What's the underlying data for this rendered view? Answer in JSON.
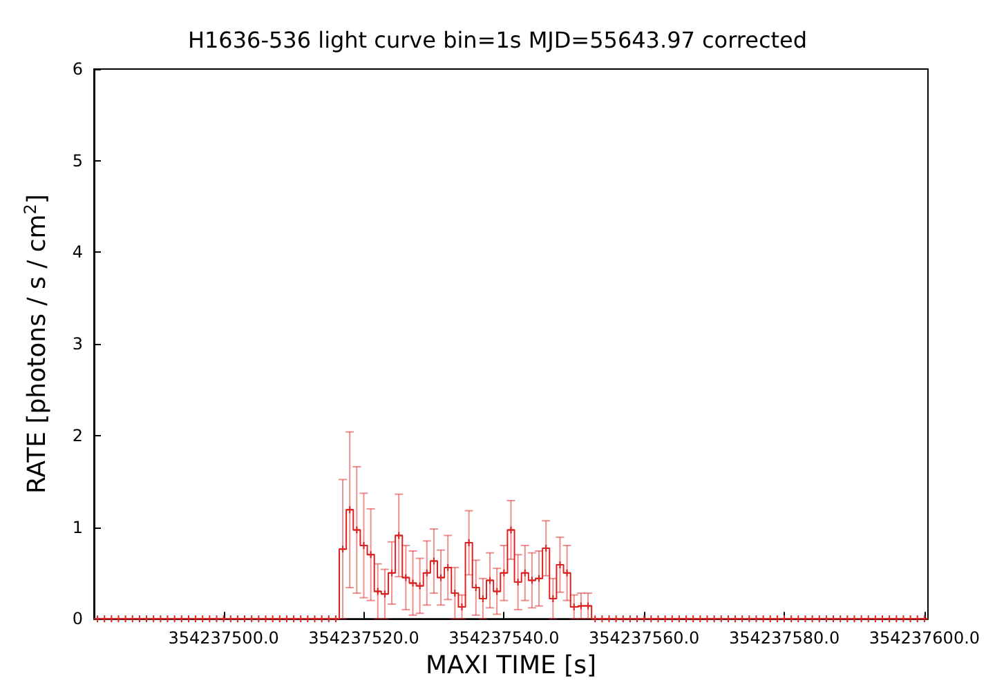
{
  "chart_data": {
    "type": "step",
    "title": "H1636-536 light curve bin=1s MJD=55643.97 corrected",
    "xlabel": "MAXI TIME [s]",
    "ylabel": "RATE [photons / s / cm$^{2}$]",
    "x": [
      354237482,
      354237483,
      354237484,
      354237485,
      354237486,
      354237487,
      354237488,
      354237489,
      354237490,
      354237491,
      354237492,
      354237493,
      354237494,
      354237495,
      354237496,
      354237497,
      354237498,
      354237499,
      354237500,
      354237501,
      354237502,
      354237503,
      354237504,
      354237505,
      354237506,
      354237507,
      354237508,
      354237509,
      354237510,
      354237511,
      354237512,
      354237513,
      354237514,
      354237515,
      354237516,
      354237517,
      354237518,
      354237519,
      354237520,
      354237521,
      354237522,
      354237523,
      354237524,
      354237525,
      354237526,
      354237527,
      354237528,
      354237529,
      354237530,
      354237531,
      354237532,
      354237533,
      354237534,
      354237535,
      354237536,
      354237537,
      354237538,
      354237539,
      354237540,
      354237541,
      354237542,
      354237543,
      354237544,
      354237545,
      354237546,
      354237547,
      354237548,
      354237549,
      354237550,
      354237551,
      354237552,
      354237553,
      354237554,
      354237555,
      354237556,
      354237557,
      354237558,
      354237559,
      354237560,
      354237561,
      354237562,
      354237563,
      354237564,
      354237565,
      354237566,
      354237567,
      354237568,
      354237569,
      354237570,
      354237571,
      354237572,
      354237573,
      354237574,
      354237575,
      354237576,
      354237577,
      354237578,
      354237579,
      354237580,
      354237581,
      354237582,
      354237583,
      354237584,
      354237585,
      354237586,
      354237587,
      354237588,
      354237589,
      354237590,
      354237591,
      354237592,
      354237593,
      354237594,
      354237595,
      354237596,
      354237597,
      354237598,
      354237599,
      354237600
    ],
    "series": [
      {
        "color": "#dd2222",
        "values": [
          0,
          0,
          0,
          0,
          0,
          0,
          0,
          0,
          0,
          0,
          0,
          0,
          0,
          0,
          0,
          0,
          0,
          0,
          0,
          0,
          0,
          0,
          0,
          0,
          0,
          0,
          0,
          0,
          0,
          0,
          0,
          0,
          0,
          0,
          0,
          0.76,
          1.19,
          0.97,
          0.8,
          0.7,
          0.3,
          0.27,
          0.5,
          0.91,
          0.45,
          0.39,
          0.36,
          0.5,
          0.63,
          0.45,
          0.56,
          0.28,
          0.13,
          0.83,
          0.34,
          0.22,
          0.42,
          0.3,
          0.5,
          0.97,
          0.4,
          0.5,
          0.42,
          0.44,
          0.77,
          0.22,
          0.59,
          0.5,
          0.13,
          0.14,
          0.14,
          0,
          0,
          0,
          0,
          0,
          0,
          0,
          0,
          0,
          0,
          0,
          0,
          0,
          0,
          0,
          0,
          0,
          0,
          0,
          0,
          0,
          0,
          0,
          0,
          0,
          0,
          0,
          0,
          0,
          0,
          0,
          0,
          0,
          0,
          0,
          0,
          0,
          0,
          0,
          0,
          0,
          0,
          0,
          0,
          0,
          0,
          0,
          0
        ],
        "errors": [
          null,
          null,
          null,
          null,
          null,
          null,
          null,
          null,
          null,
          null,
          null,
          null,
          null,
          null,
          null,
          null,
          null,
          null,
          null,
          null,
          null,
          null,
          null,
          null,
          null,
          null,
          null,
          null,
          null,
          null,
          null,
          null,
          null,
          null,
          null,
          0.76,
          0.85,
          0.69,
          0.57,
          0.5,
          0.3,
          0.27,
          0.34,
          0.45,
          0.35,
          0.35,
          0.3,
          0.35,
          0.35,
          0.3,
          0.35,
          0.28,
          0.13,
          0.35,
          0.3,
          0.22,
          0.3,
          0.25,
          0.3,
          0.32,
          0.3,
          0.3,
          0.3,
          0.3,
          0.3,
          0.22,
          0.3,
          0.3,
          0.13,
          0.14,
          0.14,
          null,
          null,
          null,
          null,
          null,
          null,
          null,
          null,
          null,
          null,
          null,
          null,
          null,
          null,
          null,
          null,
          null,
          null,
          null,
          null,
          null,
          null,
          null,
          null,
          null,
          null,
          null,
          null,
          null,
          null,
          null,
          null,
          null,
          null,
          null,
          null,
          null,
          null,
          null,
          null,
          null,
          null,
          null,
          null,
          null,
          null,
          null,
          null
        ]
      }
    ],
    "xlim": [
      354237481.5,
      354237600.5
    ],
    "xticks": [
      {
        "value": 354237500,
        "label": "354237500.0"
      },
      {
        "value": 354237520,
        "label": "354237520.0"
      },
      {
        "value": 354237540,
        "label": "354237540.0"
      },
      {
        "value": 354237560,
        "label": "354237560.0"
      },
      {
        "value": 354237580,
        "label": "354237580.0"
      },
      {
        "value": 354237600,
        "label": "354237600.0"
      }
    ],
    "ylim": [
      0,
      6
    ],
    "yticks": [
      0,
      1,
      2,
      3,
      4,
      5,
      6
    ],
    "grid": false,
    "marker": "cross"
  }
}
